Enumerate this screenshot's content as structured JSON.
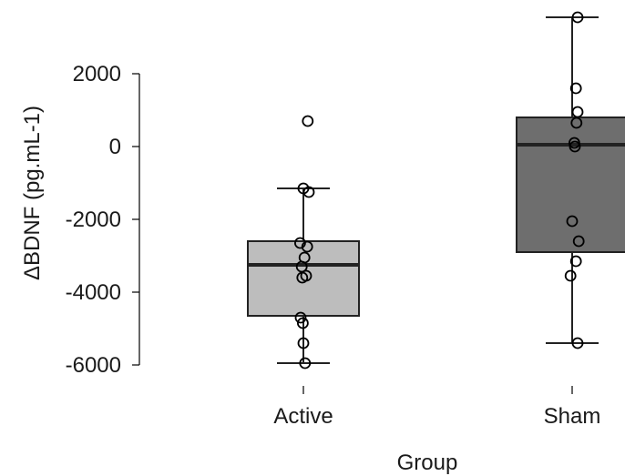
{
  "chart_data": {
    "type": "box",
    "xlabel": "Group",
    "ylabel": "ΔBDNF (pg.mL-1)",
    "y_ticks": [
      2000,
      0,
      -2000,
      -4000,
      -6000
    ],
    "ylim": [
      -6600,
      3600
    ],
    "grid": false,
    "categories": [
      "Active",
      "Sham"
    ],
    "boxes": [
      {
        "name": "Active",
        "color": "#bdbdbd",
        "whisker_low": -5950,
        "q1": -4650,
        "median": -3250,
        "q3": -2600,
        "whisker_high": -1150,
        "points": [
          {
            "jitter": 0.08,
            "y": 700
          },
          {
            "jitter": 0.0,
            "y": -1150
          },
          {
            "jitter": 0.1,
            "y": -1250
          },
          {
            "jitter": -0.06,
            "y": -2650
          },
          {
            "jitter": 0.07,
            "y": -2750
          },
          {
            "jitter": 0.02,
            "y": -3050
          },
          {
            "jitter": -0.03,
            "y": -3300
          },
          {
            "jitter": 0.05,
            "y": -3550
          },
          {
            "jitter": -0.02,
            "y": -3600
          },
          {
            "jitter": -0.05,
            "y": -4700
          },
          {
            "jitter": -0.01,
            "y": -4850
          },
          {
            "jitter": 0.0,
            "y": -5400
          },
          {
            "jitter": 0.03,
            "y": -5950
          }
        ]
      },
      {
        "name": "Sham",
        "color": "#6e6e6e",
        "whisker_low": -5400,
        "q1": -2900,
        "median": 50,
        "q3": 800,
        "whisker_high": 3550,
        "points": [
          {
            "jitter": 0.1,
            "y": 3550
          },
          {
            "jitter": 0.07,
            "y": 1600
          },
          {
            "jitter": 0.1,
            "y": 950
          },
          {
            "jitter": 0.08,
            "y": 650
          },
          {
            "jitter": 0.04,
            "y": 100
          },
          {
            "jitter": 0.05,
            "y": 0
          },
          {
            "jitter": 0.0,
            "y": -2050
          },
          {
            "jitter": 0.12,
            "y": -2600
          },
          {
            "jitter": 0.07,
            "y": -3150
          },
          {
            "jitter": -0.03,
            "y": -3550
          },
          {
            "jitter": 0.1,
            "y": -5400
          }
        ]
      }
    ]
  }
}
